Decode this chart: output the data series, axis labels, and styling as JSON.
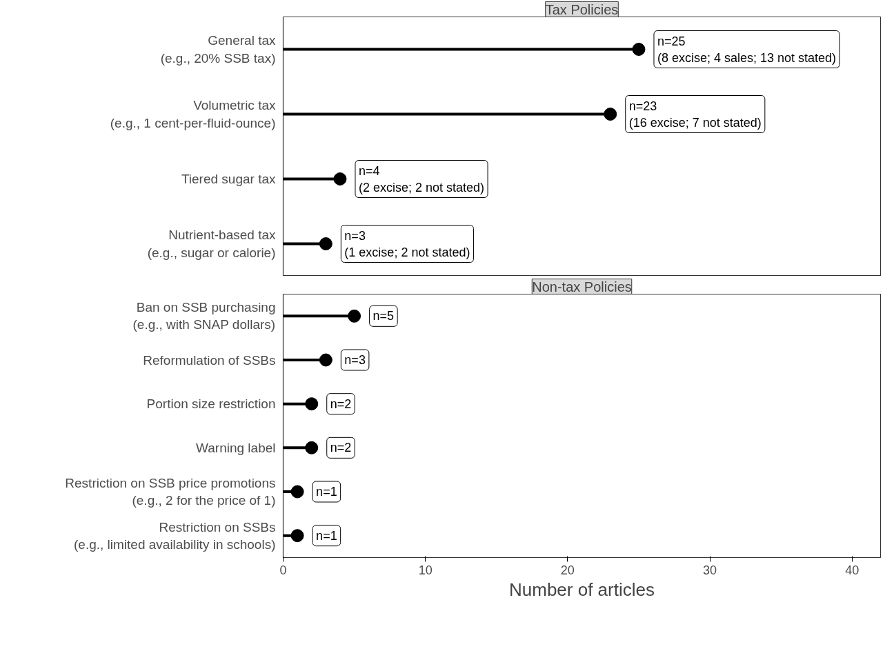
{
  "chart_data": [
    {
      "type": "lollipop",
      "title": "Tax Policies",
      "orientation": "horizontal",
      "categories": [
        "General tax\n(e.g., 20% SSB tax)",
        "Volumetric tax\n(e.g., 1 cent-per-fluid-ounce)",
        "Tiered sugar tax",
        "Nutrient-based tax\n(e.g., sugar or calorie)"
      ],
      "series": [
        {
          "color": "#000000",
          "values": [
            25,
            23,
            4,
            3
          ],
          "value_labels": [
            "n=25\n(8 excise; 4 sales; 13 not stated)",
            "n=23\n(16 excise; 7 not stated)",
            "n=4\n(2 excise; 2 not stated)",
            "n=3\n(1 excise; 2 not stated)"
          ]
        }
      ],
      "xlim": [
        0,
        42
      ],
      "xticks": [
        0,
        10,
        20,
        30,
        40
      ],
      "tick_labels": "y",
      "marker": "circle",
      "grid": false
    },
    {
      "type": "lollipop",
      "title": "Non-tax Policies",
      "orientation": "horizontal",
      "xlabel": "Number of articles",
      "categories": [
        "Ban on SSB purchasing\n(e.g., with SNAP dollars)",
        "Reformulation of SSBs",
        "Portion size restriction",
        "Warning label",
        "Restriction on SSB price promotions\n(e.g., 2 for the price of 1)",
        "Restriction on SSBs\n(e.g., limited availability in schools)"
      ],
      "series": [
        {
          "color": "#000000",
          "values": [
            5,
            3,
            2,
            2,
            1,
            1
          ],
          "value_labels": [
            "n=5",
            "n=3",
            "n=2",
            "n=2",
            "n=1",
            "n=1"
          ]
        }
      ],
      "xlim": [
        0,
        42
      ],
      "xticks": [
        0,
        10,
        20,
        30,
        40
      ],
      "marker": "circle",
      "grid": false
    }
  ]
}
